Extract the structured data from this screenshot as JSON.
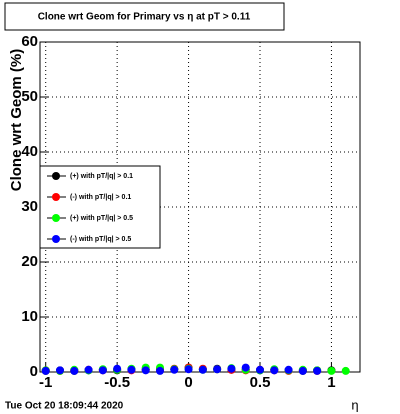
{
  "chart_data": {
    "type": "scatter",
    "title": "Clone wrt Geom for Primary vs  η at pT > 0.11",
    "y_label": "Clone wrt Geom (%)",
    "x_label": "η",
    "timestamp": "Tue Oct 20 18:09:44 2020",
    "x": [
      -1.0,
      -0.9,
      -0.8,
      -0.7,
      -0.6,
      -0.5,
      -0.4,
      -0.3,
      -0.2,
      -0.1,
      0.0,
      0.1,
      0.2,
      0.3,
      0.4,
      0.5,
      0.6,
      0.7,
      0.8,
      0.9,
      1.0,
      1.1
    ],
    "series": [
      {
        "name": "(+) with pT/|q| > 0.1",
        "color": "#000000",
        "values": [
          0.2,
          0.3,
          0.2,
          0.3,
          0.4,
          0.3,
          0.5,
          0.4,
          0.6,
          0.5,
          0.8,
          0.5,
          0.6,
          0.4,
          0.5,
          0.3,
          0.4,
          0.3,
          0.2,
          0.3,
          0.3,
          null
        ]
      },
      {
        "name": "(-) with pT/|q| > 0.1",
        "color": "#ff0000",
        "values": [
          0.3,
          0.2,
          0.3,
          0.4,
          0.3,
          0.4,
          0.3,
          0.5,
          0.4,
          0.6,
          0.8,
          0.6,
          0.5,
          0.4,
          0.3,
          0.4,
          0.3,
          0.2,
          0.3,
          0.2,
          null,
          null
        ]
      },
      {
        "name": "(+) with pT/|q| > 0.5",
        "color": "#00ff00",
        "values": [
          0.3,
          0.2,
          0.4,
          0.3,
          0.5,
          0.4,
          0.6,
          0.8,
          0.8,
          0.5,
          0.6,
          0.4,
          0.5,
          0.7,
          0.4,
          0.3,
          0.5,
          0.3,
          0.4,
          0.3,
          0.2,
          0.2
        ]
      },
      {
        "name": "(-) with pT/|q| > 0.5",
        "color": "#0000ff",
        "values": [
          0.2,
          0.3,
          0.2,
          0.4,
          0.3,
          0.6,
          0.4,
          0.3,
          0.2,
          0.4,
          0.5,
          0.4,
          0.5,
          0.6,
          0.8,
          0.4,
          0.3,
          0.4,
          0.2,
          0.2,
          null,
          null
        ]
      }
    ],
    "xlim": [
      -1.04,
      1.2
    ],
    "ylim": [
      0,
      60
    ],
    "xticks": [
      -1,
      -0.5,
      0,
      0.5,
      1
    ],
    "yticks": [
      0,
      10,
      20,
      30,
      40,
      50,
      60
    ],
    "grid": true
  }
}
